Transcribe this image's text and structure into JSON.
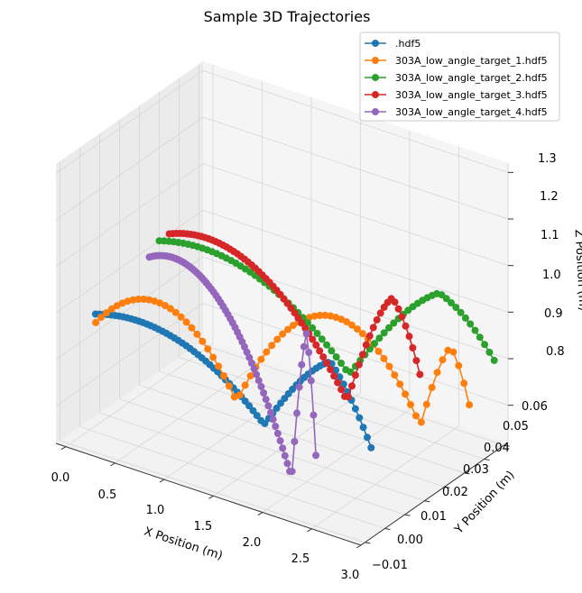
{
  "chart_data": {
    "type": "scatter3d",
    "title": "Sample 3D Trajectories",
    "xlabel": "X Position (m)",
    "ylabel": "Y Position (m)",
    "zlabel": "Z Position (m)",
    "xlim": [
      -0.1,
      3.0
    ],
    "ylim": [
      -0.012,
      0.062
    ],
    "zlim": [
      0.72,
      1.32
    ],
    "xticks": [
      "0.0",
      "0.5",
      "1.0",
      "1.5",
      "2.0",
      "2.5",
      "3.0"
    ],
    "yticks": [
      "−0.01",
      "0.00",
      "0.01",
      "0.02",
      "0.03",
      "0.04",
      "0.05",
      "0.06"
    ],
    "zticks": [
      "0.8",
      "0.9",
      "1.0",
      "1.1",
      "1.2",
      "1.3"
    ],
    "grid": true,
    "legend_position": "top-right",
    "series": [
      {
        "name": ".hdf5",
        "color": "#1f77b4",
        "x0": 0.0,
        "x1": 2.7,
        "bounce": 1.65,
        "y0": 0.003,
        "y1": 0.008,
        "z_start": 0.96,
        "apex": [
          1.0,
          1.02
        ],
        "z_low": 0.83,
        "z_end": 0.86
      },
      {
        "name": "303A_low_angle_target_1.hdf5",
        "color": "#ff7f0e",
        "x0": -0.1,
        "x1": 2.95,
        "bounce": 1.05,
        "bounce2": 2.55,
        "y0": 0.008,
        "y1": 0.045,
        "z_start": 0.92,
        "apex": [
          1.02,
          0.98
        ],
        "z_low": 0.79,
        "z_end": 0.86
      },
      {
        "name": "303A_low_angle_target_2.hdf5",
        "color": "#2ca02c",
        "x0": -0.1,
        "x1": 2.9,
        "bounce": 1.6,
        "y0": 0.04,
        "y1": 0.06,
        "z_start": 1.0,
        "apex": [
          1.05,
          1.03
        ],
        "z_low": 0.8,
        "z_end": 0.91
      },
      {
        "name": "303A_low_angle_target_3.hdf5",
        "color": "#d62728",
        "x0": -0.1,
        "x1": 2.65,
        "bounce": 1.85,
        "y0": 0.045,
        "y1": 0.035,
        "z_start": 1.0,
        "apex": [
          1.08
        ],
        "z_low": 0.8,
        "z_end": 0.94
      },
      {
        "name": "303A_low_angle_target_4.hdf5",
        "color": "#9467bd",
        "x0": -0.1,
        "x1": 2.3,
        "bounce": 1.95,
        "y0": 0.035,
        "y1": 0.0,
        "z_start": 0.98,
        "apex": [
          1.1
        ],
        "z_low": 0.74,
        "z_end": 0.85
      }
    ]
  }
}
